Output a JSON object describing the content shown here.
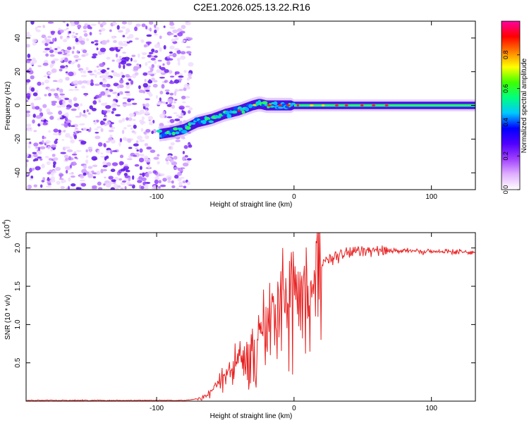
{
  "title": "C2E1.2026.025.13.22.R16",
  "chart_data": [
    {
      "type": "heatmap",
      "name": "spectrogram",
      "xlabel": "Height of straight line (km)",
      "ylabel": "Frequency (Hz)",
      "xlim": [
        -195,
        132
      ],
      "ylim": [
        -50,
        50
      ],
      "xticks": [
        -100,
        0,
        100
      ],
      "xtick_labels": [
        "-100",
        "0",
        "100"
      ],
      "yticks": [
        -40,
        -20,
        0,
        20,
        40
      ],
      "ytick_labels": [
        "-40",
        "-20",
        "0",
        "20",
        "40"
      ],
      "noise_region_x": [
        -195,
        -75
      ],
      "signal_track": [
        {
          "x": -98,
          "y": -17
        },
        {
          "x": -90,
          "y": -16
        },
        {
          "x": -80,
          "y": -14
        },
        {
          "x": -70,
          "y": -10
        },
        {
          "x": -60,
          "y": -8
        },
        {
          "x": -50,
          "y": -5
        },
        {
          "x": -40,
          "y": -3
        },
        {
          "x": -30,
          "y": 0
        },
        {
          "x": -25,
          "y": 1
        },
        {
          "x": -20,
          "y": 0
        },
        {
          "x": -10,
          "y": 0
        },
        {
          "x": 0,
          "y": 0
        },
        {
          "x": 20,
          "y": 0
        },
        {
          "x": 60,
          "y": 0
        },
        {
          "x": 100,
          "y": 0
        },
        {
          "x": 132,
          "y": 0
        }
      ],
      "colorbar": {
        "label": "Normalized spectral amplitude",
        "range": [
          0,
          1
        ],
        "ticks": [
          0.0,
          0.2,
          0.4,
          0.6,
          0.8
        ],
        "tick_labels": [
          "0.0",
          "0.2",
          "0.4",
          "0.6",
          "0.8"
        ],
        "colors": [
          "#ffffff",
          "#e0b0ff",
          "#a040ff",
          "#5000ff",
          "#0000ff",
          "#00c8ff",
          "#00ff80",
          "#40ff00",
          "#ffff00",
          "#ff8000",
          "#ff0000",
          "#ff00a0"
        ]
      }
    },
    {
      "type": "line",
      "name": "snr",
      "xlabel": "Height of straight line (km)",
      "ylabel": "SNR (10 * v/v)",
      "scale_label": "(x10",
      "scale_exp": "4",
      "scale_close": ")",
      "xlim": [
        -195,
        132
      ],
      "ylim": [
        0,
        2.2
      ],
      "xticks": [
        -100,
        0,
        100
      ],
      "xtick_labels": [
        "-100",
        "0",
        "100"
      ],
      "yticks": [
        0.5,
        1.0,
        1.5,
        2.0
      ],
      "ytick_labels": [
        "0.5",
        "1.0",
        "1.5",
        "2.0"
      ],
      "color": "#e82020",
      "series": [
        {
          "name": "SNR",
          "x": [
            -195,
            -80,
            -70,
            -60,
            -50,
            -40,
            -30,
            -20,
            -10,
            0,
            5,
            10,
            20,
            30,
            40,
            50,
            60,
            70,
            80,
            100,
            132
          ],
          "y": [
            0.01,
            0.01,
            0.03,
            0.12,
            0.35,
            0.55,
            0.8,
            1.05,
            1.3,
            1.5,
            1.55,
            1.65,
            1.78,
            1.88,
            1.93,
            1.97,
            1.99,
            1.97,
            1.96,
            1.95,
            1.95
          ]
        }
      ]
    }
  ]
}
